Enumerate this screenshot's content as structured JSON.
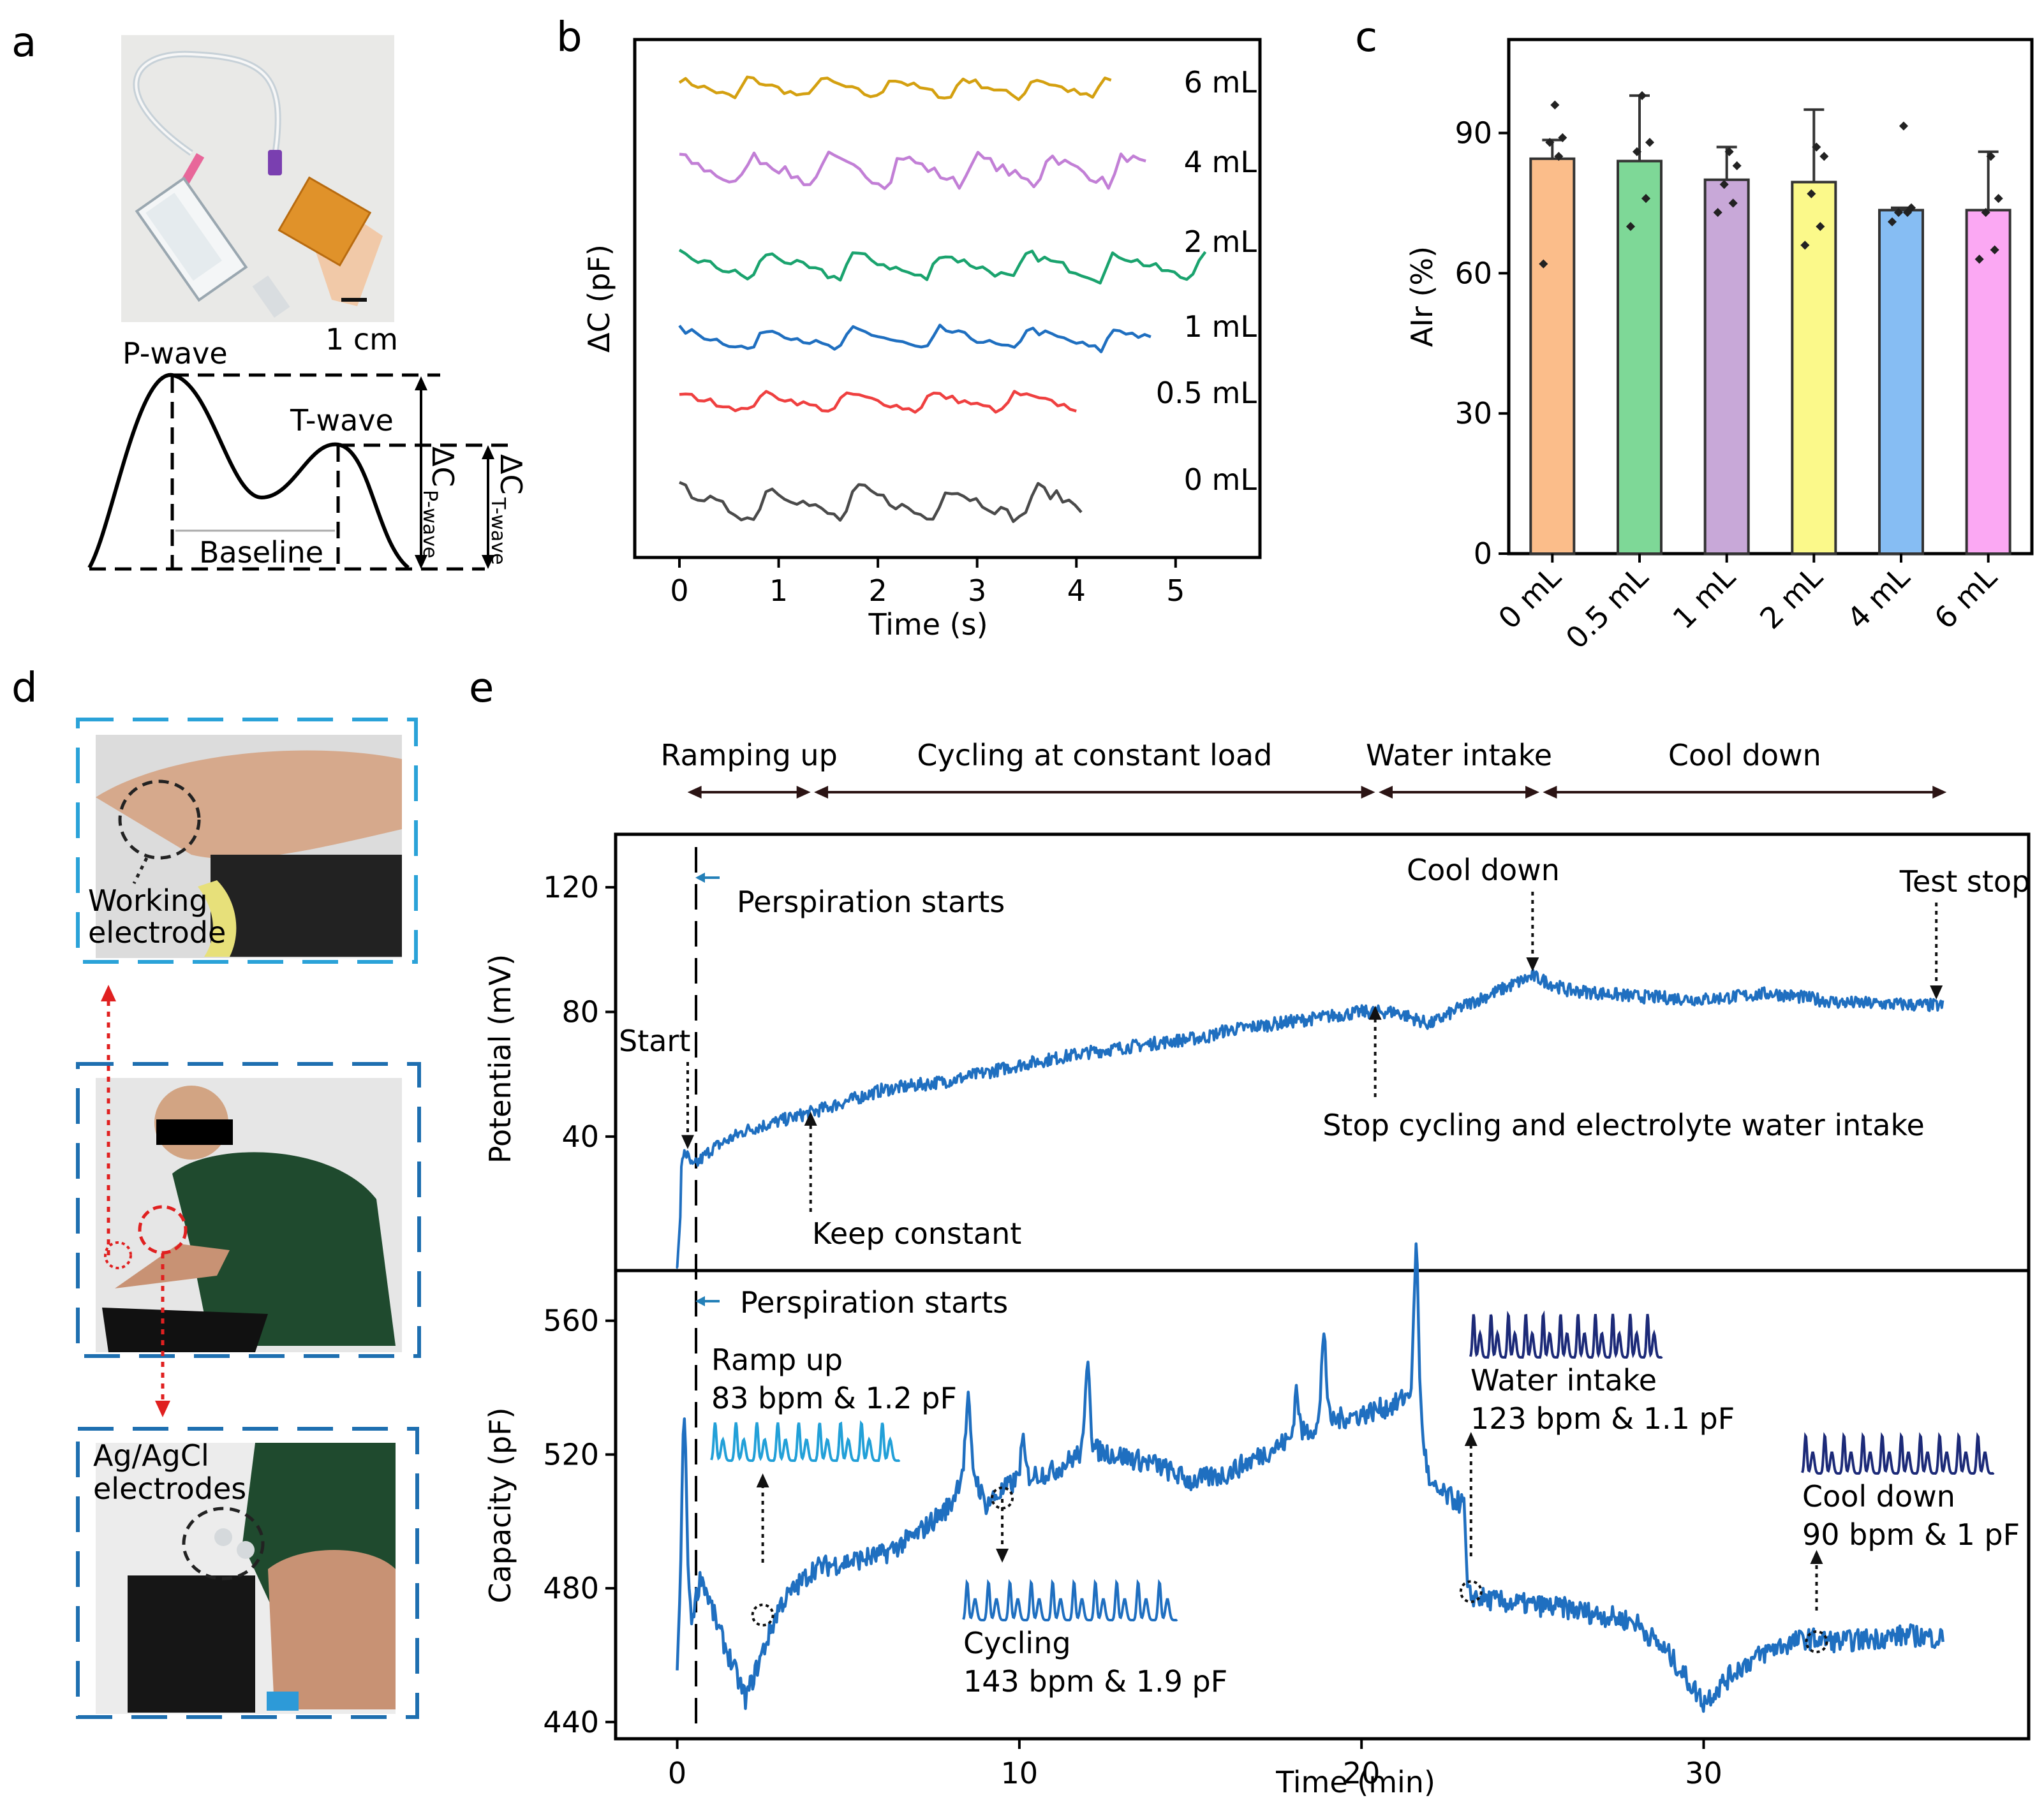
{
  "panels": {
    "a": "a",
    "b": "b",
    "c": "c",
    "d": "d",
    "e": "e"
  },
  "colors": {
    "blue": "#1f6fc0",
    "light_blue": "#22a0d8",
    "navy": "#1c2a78",
    "arrow": "#2b1414",
    "red_dot": "#e02020",
    "box_top": "#2aa2d8",
    "box_blue": "#1e6fb0"
  },
  "panel_a": {
    "scale_label": "1 cm",
    "p_wave": "P-wave",
    "t_wave": "T-wave",
    "baseline": "Baseline",
    "delta_c": "ΔC",
    "sub_p": "P-wave",
    "sub_t": "T-wave"
  },
  "panel_d": {
    "working_electrode_1": "Working",
    "working_electrode_2": "electrode",
    "agcl_1": "Ag/AgCl",
    "agcl_2": "electrodes"
  },
  "chart_data": [
    {
      "id": "b",
      "type": "line",
      "title": "",
      "xlabel": "Time (s)",
      "ylabel": "ΔC (pF)",
      "xlim": [
        -0.45,
        5.85
      ],
      "xticks": [
        0,
        1,
        2,
        3,
        4,
        5
      ],
      "note": "vertically offset traces, no y tick labels",
      "series": [
        {
          "name": "6 mL",
          "color": "#d4a010",
          "duration": 4.35,
          "period": 0.72,
          "offset": 0,
          "amp": 38
        },
        {
          "name": "4 mL",
          "color": "#c27fd6",
          "duration": 4.7,
          "period": 0.75,
          "offset": 1,
          "amp": 58
        },
        {
          "name": "2 mL",
          "color": "#1aa36e",
          "duration": 5.3,
          "period": 0.88,
          "offset": 2,
          "amp": 48
        },
        {
          "name": "1 mL",
          "color": "#1f6fc0",
          "duration": 4.75,
          "period": 0.88,
          "offset": 3,
          "amp": 40
        },
        {
          "name": "0.5 mL",
          "color": "#ef4040",
          "duration": 4.0,
          "period": 0.85,
          "offset": 4,
          "amp": 34
        },
        {
          "name": "0 mL",
          "color": "#4a4a4a",
          "duration": 4.05,
          "period": 0.9,
          "offset": 5,
          "amp": 62
        }
      ]
    },
    {
      "id": "c",
      "type": "bar",
      "title": "",
      "xlabel": "",
      "ylabel": "AIr (%)",
      "ylim": [
        0,
        110
      ],
      "yticks": [
        0,
        30,
        60,
        90
      ],
      "categories": [
        "0 mL",
        "0.5 mL",
        "1 mL",
        "2 mL",
        "4 mL",
        "6 mL"
      ],
      "values": [
        84.5,
        84,
        80,
        79.5,
        73.5,
        73.5
      ],
      "errors": [
        4,
        14,
        7,
        15.5,
        0.5,
        12.5
      ],
      "colors": [
        "#fbbd8a",
        "#7ed897",
        "#c8a8d8",
        "#fbf98a",
        "#86bdf3",
        "#fba8f3"
      ],
      "points": [
        [
          62,
          85,
          88,
          89,
          96
        ],
        [
          70,
          76,
          86,
          88,
          98
        ],
        [
          73,
          75,
          79,
          83,
          86
        ],
        [
          66,
          70,
          77,
          85,
          87
        ],
        [
          71,
          73,
          73,
          74,
          91.5
        ],
        [
          63,
          65,
          73,
          76,
          85
        ]
      ]
    },
    {
      "id": "e",
      "type": "line",
      "title": "",
      "xlabel": "Time (min)",
      "xlim": [
        -1.8,
        39.5
      ],
      "xticks": [
        0,
        10,
        20,
        30
      ],
      "phases": [
        {
          "label": "Ramping up",
          "start": 0.3,
          "end": 3.9
        },
        {
          "label": "Cycling at constant load",
          "start": 4.0,
          "end": 20.4
        },
        {
          "label": "Water intake",
          "start": 20.5,
          "end": 25.2
        },
        {
          "label": "Cool down",
          "start": 25.3,
          "end": 37.1
        }
      ],
      "top": {
        "ylabel": "Potential (mV)",
        "ylim": [
          -3,
          137
        ],
        "yticks": [
          40,
          80,
          120
        ],
        "key_points": [
          [
            0,
            22
          ],
          [
            0.1,
            27
          ],
          [
            0.2,
            36
          ],
          [
            0.45,
            30
          ],
          [
            1,
            36
          ],
          [
            2,
            42
          ],
          [
            4,
            48
          ],
          [
            6,
            55
          ],
          [
            8,
            58
          ],
          [
            10,
            63
          ],
          [
            12,
            67
          ],
          [
            14,
            70
          ],
          [
            15.5,
            72
          ],
          [
            16,
            74
          ],
          [
            18,
            77
          ],
          [
            20,
            80
          ],
          [
            21,
            80
          ],
          [
            22,
            76
          ],
          [
            23,
            82
          ],
          [
            25,
            91.5
          ],
          [
            26,
            87
          ],
          [
            28,
            85
          ],
          [
            30,
            84
          ],
          [
            32,
            86
          ],
          [
            34,
            83
          ],
          [
            37,
            82
          ]
        ],
        "annotations": [
          {
            "text": "Perspiration starts"
          },
          {
            "text": "Start"
          },
          {
            "text": "Keep constant"
          },
          {
            "text": "Cool down"
          },
          {
            "text": "Test stop"
          },
          {
            "text": "Stop cycling and electrolyte water intake"
          }
        ]
      },
      "bottom": {
        "ylabel": "Capacity (pF)",
        "ylim": [
          435,
          575
        ],
        "yticks": [
          440,
          480,
          520,
          560
        ],
        "key_points": [
          [
            0,
            455
          ],
          [
            0.2,
            503
          ],
          [
            0.4,
            470
          ],
          [
            0.7,
            484
          ],
          [
            1.2,
            468
          ],
          [
            2,
            447
          ],
          [
            3,
            475
          ],
          [
            4,
            486
          ],
          [
            6,
            490
          ],
          [
            7,
            496
          ],
          [
            8,
            505
          ],
          [
            8.5,
            520
          ],
          [
            9,
            505
          ],
          [
            10,
            513
          ],
          [
            11,
            515
          ],
          [
            12,
            522
          ],
          [
            14,
            517
          ],
          [
            15,
            512
          ],
          [
            16,
            514
          ],
          [
            18,
            525
          ],
          [
            19,
            530
          ],
          [
            20,
            532
          ],
          [
            21,
            535
          ],
          [
            21.6,
            540
          ],
          [
            22,
            510
          ],
          [
            23,
            505
          ],
          [
            23.1,
            478
          ],
          [
            24,
            476
          ],
          [
            26,
            474
          ],
          [
            28,
            470
          ],
          [
            29,
            460
          ],
          [
            30,
            446
          ],
          [
            31,
            456
          ],
          [
            32,
            462
          ],
          [
            33,
            465
          ],
          [
            34,
            464
          ],
          [
            36,
            466
          ],
          [
            37,
            465
          ]
        ],
        "spikes": [
          [
            8.5,
            16
          ],
          [
            10.1,
            10
          ],
          [
            12,
            28
          ],
          [
            18.1,
            14
          ],
          [
            18.9,
            28
          ],
          [
            21.6,
            42
          ],
          [
            0.2,
            30
          ]
        ],
        "annotations": [
          {
            "text": "Perspiration starts"
          },
          {
            "text": "Ramp up",
            "sub": "83 bpm & 1.2 pF"
          },
          {
            "text": "Cycling",
            "sub": "143 bpm & 1.9 pF"
          },
          {
            "text": "Water intake",
            "sub": "123 bpm & 1.1 pF"
          },
          {
            "text": "Cool down",
            "sub": "90 bpm & 1 pF"
          }
        ]
      }
    }
  ]
}
